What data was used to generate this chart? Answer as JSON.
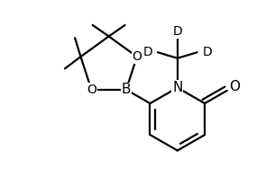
{
  "bg_color": "#ffffff",
  "line_color": "#000000",
  "line_width": 1.6,
  "font_size": 10,
  "figure_width": 3.05,
  "figure_height": 2.16,
  "dpi": 100,
  "xlim": [
    -1.3,
    1.05
  ],
  "ylim": [
    -1.1,
    0.85
  ]
}
